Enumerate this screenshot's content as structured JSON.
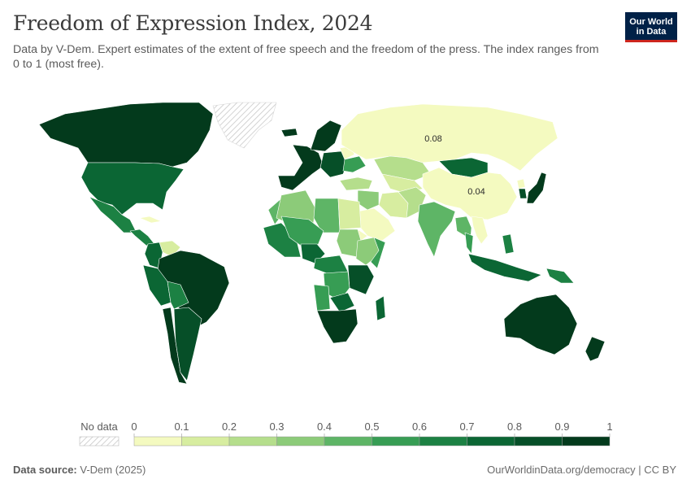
{
  "header": {
    "title": "Freedom of Expression Index, 2024",
    "subtitle": "Data by V-Dem. Expert estimates of the extent of free speech and the freedom of the press. The index ranges from 0 to 1 (most free)."
  },
  "logo": {
    "line1": "Our World",
    "line2": "in Data",
    "bg_color": "#002147",
    "accent_color": "#ce261e"
  },
  "map": {
    "labels": [
      {
        "name": "Russia",
        "text": "0.08"
      },
      {
        "name": "China",
        "text": "0.04"
      }
    ],
    "countries": [
      {
        "name": "Canada",
        "value": 0.95
      },
      {
        "name": "United States",
        "value": 0.78
      },
      {
        "name": "Mexico",
        "value": 0.62
      },
      {
        "name": "Central America",
        "value": 0.6
      },
      {
        "name": "Cuba",
        "value": 0.06
      },
      {
        "name": "Venezuela",
        "value": 0.18
      },
      {
        "name": "Colombia",
        "value": 0.7
      },
      {
        "name": "Brazil",
        "value": 0.93
      },
      {
        "name": "Peru",
        "value": 0.72
      },
      {
        "name": "Bolivia",
        "value": 0.65
      },
      {
        "name": "Chile",
        "value": 0.9
      },
      {
        "name": "Argentina",
        "value": 0.88
      },
      {
        "name": "Greenland",
        "value": null
      },
      {
        "name": "Iceland",
        "value": 0.95
      },
      {
        "name": "Western Europe",
        "value": 0.96
      },
      {
        "name": "Scandinavia",
        "value": 0.97
      },
      {
        "name": "Eastern Europe",
        "value": 0.82
      },
      {
        "name": "Belarus",
        "value": 0.05
      },
      {
        "name": "Ukraine",
        "value": 0.55
      },
      {
        "name": "Turkey",
        "value": 0.22
      },
      {
        "name": "Russia",
        "value": 0.08
      },
      {
        "name": "Kazakhstan",
        "value": 0.25
      },
      {
        "name": "Central Asia",
        "value": 0.1
      },
      {
        "name": "Mongolia",
        "value": 0.78
      },
      {
        "name": "China",
        "value": 0.04
      },
      {
        "name": "North Korea",
        "value": 0.01
      },
      {
        "name": "South Korea",
        "value": 0.88
      },
      {
        "name": "Japan",
        "value": 0.9
      },
      {
        "name": "Iran",
        "value": 0.15
      },
      {
        "name": "Saudi Arabia",
        "value": 0.03
      },
      {
        "name": "Iraq Syria",
        "value": 0.35
      },
      {
        "name": "Afghanistan Pakistan",
        "value": 0.2
      },
      {
        "name": "India",
        "value": 0.48
      },
      {
        "name": "Myanmar Southeast Asia",
        "value": 0.45
      },
      {
        "name": "Vietnam Laos",
        "value": 0.08
      },
      {
        "name": "Thailand",
        "value": 0.5
      },
      {
        "name": "Indonesia",
        "value": 0.7
      },
      {
        "name": "Philippines",
        "value": 0.62
      },
      {
        "name": "Papua New Guinea",
        "value": 0.68
      },
      {
        "name": "Australia",
        "value": 0.95
      },
      {
        "name": "New Zealand",
        "value": 0.95
      },
      {
        "name": "Morocco",
        "value": 0.4
      },
      {
        "name": "Algeria",
        "value": 0.3
      },
      {
        "name": "Libya",
        "value": 0.45
      },
      {
        "name": "Egypt",
        "value": 0.12
      },
      {
        "name": "West Africa",
        "value": 0.6
      },
      {
        "name": "Sahel",
        "value": 0.55
      },
      {
        "name": "Nigeria",
        "value": 0.7
      },
      {
        "name": "Sudan",
        "value": 0.35
      },
      {
        "name": "Eritrea",
        "value": 0.02
      },
      {
        "name": "Ethiopia",
        "value": 0.3
      },
      {
        "name": "Somalia",
        "value": 0.55
      },
      {
        "name": "Central Africa",
        "value": 0.68
      },
      {
        "name": "Kenya Tanzania",
        "value": 0.82
      },
      {
        "name": "DR Congo",
        "value": 0.5
      },
      {
        "name": "Angola",
        "value": 0.5
      },
      {
        "name": "Zambia",
        "value": 0.7
      },
      {
        "name": "Southern Africa",
        "value": 0.9
      },
      {
        "name": "Madagascar",
        "value": 0.72
      }
    ]
  },
  "legend": {
    "no_data_label": "No data",
    "ticks": [
      "0",
      "0.1",
      "0.2",
      "0.3",
      "0.4",
      "0.5",
      "0.6",
      "0.7",
      "0.8",
      "0.9",
      "1"
    ],
    "colors": [
      "#fefee3",
      "#f4fac0",
      "#d7eda0",
      "#b5de8c",
      "#8ccb79",
      "#5eb566",
      "#379d54",
      "#1c8143",
      "#0b6634",
      "#064f28",
      "#033a1c"
    ]
  },
  "footer": {
    "source_label": "Data source:",
    "source_value": "V-Dem (2025)",
    "credit": "OurWorldinData.org/democracy | CC BY"
  }
}
